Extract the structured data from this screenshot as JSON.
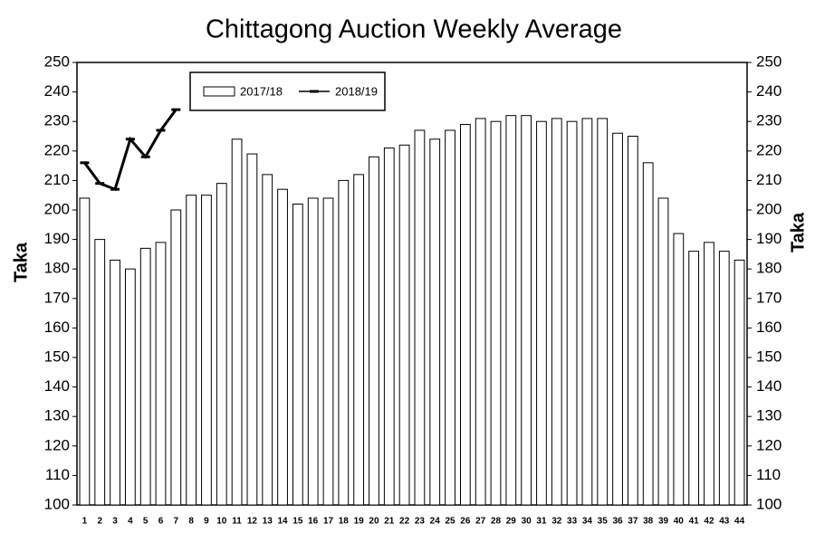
{
  "chart_data": {
    "type": "bar",
    "title": "Chittagong Auction Weekly Average",
    "y_label": "Taka",
    "y2_label": "Taka",
    "categories": [
      "1",
      "2",
      "3",
      "4",
      "5",
      "6",
      "7",
      "8",
      "9",
      "10",
      "11",
      "12",
      "13",
      "14",
      "15",
      "16",
      "17",
      "18",
      "19",
      "20",
      "21",
      "22",
      "23",
      "24",
      "25",
      "26",
      "27",
      "28",
      "29",
      "30",
      "31",
      "32",
      "33",
      "34",
      "35",
      "36",
      "37",
      "38",
      "39",
      "40",
      "41",
      "42",
      "43",
      "44"
    ],
    "series": [
      {
        "name": "2017/18",
        "type": "bar",
        "color": "#ffffff",
        "values": [
          204,
          190,
          183,
          180,
          187,
          189,
          200,
          205,
          205,
          209,
          224,
          219,
          212,
          207,
          202,
          204,
          204,
          210,
          212,
          218,
          221,
          222,
          227,
          224,
          227,
          229,
          231,
          230,
          232,
          232,
          230,
          231,
          230,
          231,
          231,
          226,
          225,
          216,
          204,
          192,
          186,
          189,
          186,
          183
        ]
      },
      {
        "name": "2018/19",
        "type": "line",
        "color": "#000000",
        "values": [
          216,
          209,
          207,
          224,
          218,
          227,
          234,
          null,
          null,
          null,
          null,
          null,
          null,
          null,
          null,
          null,
          null,
          null,
          null,
          null,
          null,
          null,
          null,
          null,
          null,
          null,
          null,
          null,
          null,
          null,
          null,
          null,
          null,
          null,
          null,
          null,
          null,
          null,
          null,
          null,
          null,
          null,
          null,
          null
        ]
      }
    ],
    "ylim": [
      100,
      250
    ],
    "yticks": [
      100,
      110,
      120,
      130,
      140,
      150,
      160,
      170,
      180,
      190,
      200,
      210,
      220,
      230,
      240,
      250
    ],
    "y2lim": [
      100,
      250
    ],
    "y2ticks": [
      100,
      110,
      120,
      130,
      140,
      150,
      160,
      170,
      180,
      190,
      200,
      210,
      220,
      230,
      240,
      250
    ],
    "legend": "top-left"
  }
}
